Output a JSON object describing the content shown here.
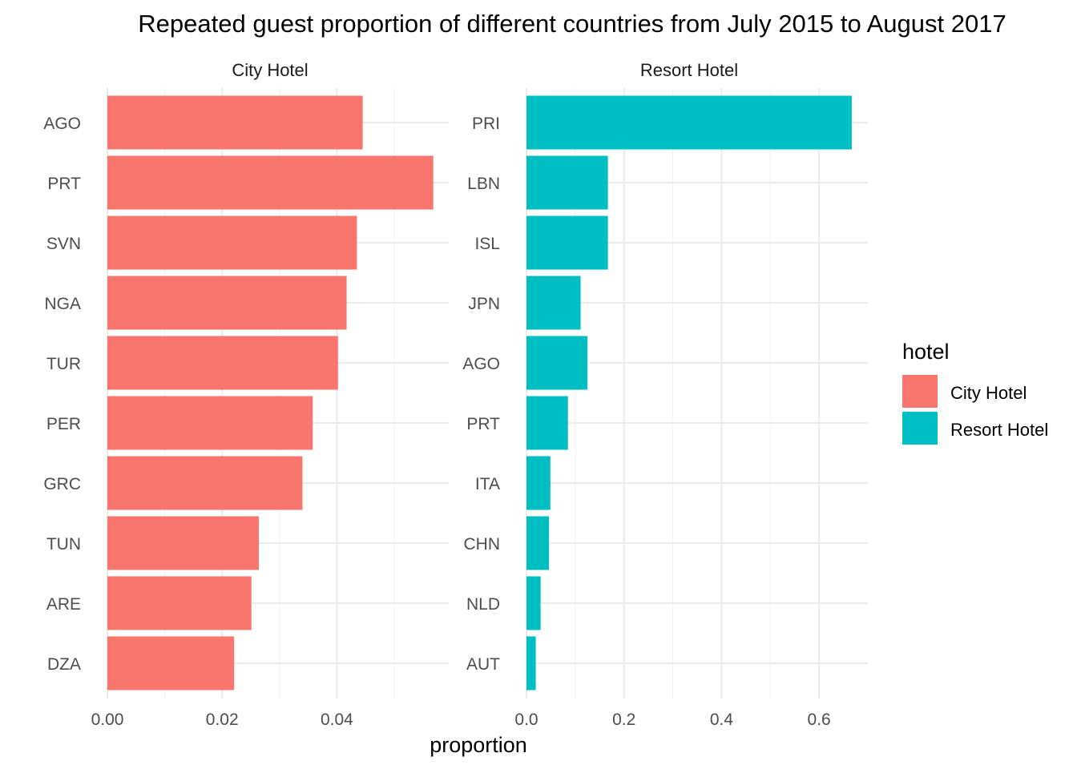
{
  "chart_data": {
    "type": "bar",
    "orientation": "horizontal",
    "title": "Repeated guest proportion of different countries from July 2015 to August 2017",
    "xlabel": "proportion",
    "ylabel": "",
    "grid": true,
    "legend": {
      "title": "hotel",
      "placement": "right",
      "entries": [
        {
          "name": "City Hotel",
          "color": "#F8766D"
        },
        {
          "name": "Resort Hotel",
          "color": "#00BFC4"
        }
      ]
    },
    "panels": [
      {
        "name": "City Hotel",
        "color": "#F8766D",
        "xlim": [
          0,
          0.0595
        ],
        "xticks": [
          0,
          0.02,
          0.04
        ],
        "xtick_labels": [
          "0.00",
          "0.02",
          "0.04"
        ],
        "categories": [
          "AGO",
          "PRT",
          "SVN",
          "NGA",
          "TUR",
          "PER",
          "GRC",
          "TUN",
          "ARE",
          "DZA"
        ],
        "values": [
          0.0445,
          0.0568,
          0.0435,
          0.0417,
          0.0402,
          0.0358,
          0.034,
          0.0264,
          0.0251,
          0.0221
        ]
      },
      {
        "name": "Resort Hotel",
        "color": "#00BFC4",
        "xlim": [
          0,
          0.7
        ],
        "xticks": [
          0,
          0.2,
          0.4,
          0.6
        ],
        "xtick_labels": [
          "0.0",
          "0.2",
          "0.4",
          "0.6"
        ],
        "categories": [
          "PRI",
          "LBN",
          "ISL",
          "JPN",
          "AGO",
          "PRT",
          "ITA",
          "CHN",
          "NLD",
          "AUT"
        ],
        "values": [
          0.667,
          0.167,
          0.167,
          0.111,
          0.125,
          0.085,
          0.049,
          0.046,
          0.029,
          0.019
        ]
      }
    ]
  }
}
